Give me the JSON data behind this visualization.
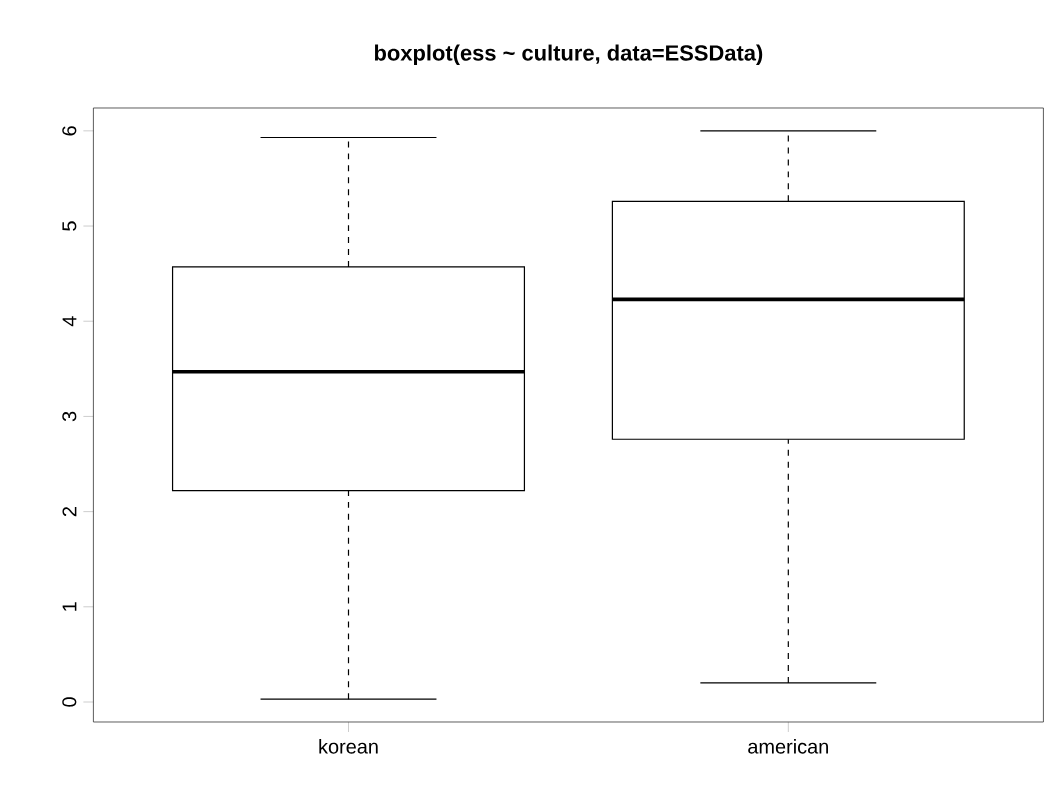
{
  "chart_data": {
    "type": "box",
    "title": "boxplot(ess ~ culture, data=ESSData)",
    "categories": [
      "korean",
      "american"
    ],
    "boxes": [
      {
        "low": 0.03,
        "q1": 2.22,
        "median": 3.47,
        "q3": 4.57,
        "high": 5.93
      },
      {
        "low": 0.2,
        "q1": 2.76,
        "median": 4.23,
        "q3": 5.26,
        "high": 6.0
      }
    ],
    "color": "#000000",
    "ylim": [
      -0.21,
      6.24
    ],
    "yticks": [
      0,
      1,
      2,
      3,
      4,
      5,
      6
    ]
  }
}
